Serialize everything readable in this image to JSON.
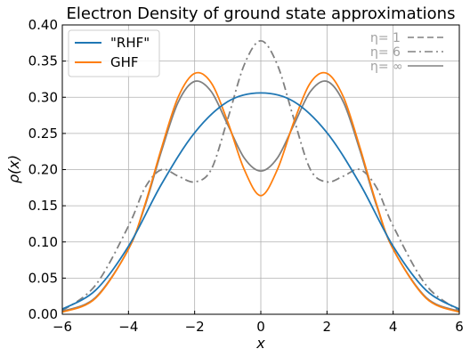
{
  "chart_data": {
    "type": "line",
    "title": "Electron Density of ground state approximations",
    "xlabel": "x",
    "ylabel": "ρ(x)",
    "xlim": [
      -6,
      6
    ],
    "ylim": [
      0,
      0.4
    ],
    "grid": true,
    "x_ticks": [
      -6,
      -4,
      -2,
      0,
      2,
      4,
      6
    ],
    "x_tick_labels": [
      "−6",
      "−4",
      "−2",
      "0",
      "2",
      "4",
      "6"
    ],
    "y_ticks": [
      0,
      0.05,
      0.1,
      0.15,
      0.2,
      0.25,
      0.3,
      0.35,
      0.4
    ],
    "y_tick_labels": [
      "0.00",
      "0.05",
      "0.10",
      "0.15",
      "0.20",
      "0.25",
      "0.30",
      "0.35",
      "0.40"
    ],
    "legend_placement": "top-left",
    "series": [
      {
        "name": "\"RHF\"",
        "color": "#1f77b4",
        "style": "solid",
        "x": [
          -6,
          -5,
          -4,
          -3,
          -2,
          -1,
          0,
          1,
          2,
          3,
          4,
          5,
          6
        ],
        "y": [
          0.007,
          0.033,
          0.094,
          0.18,
          0.251,
          0.294,
          0.306,
          0.294,
          0.251,
          0.18,
          0.094,
          0.033,
          0.007
        ]
      },
      {
        "name": "GHF",
        "color": "#ff7f0e",
        "style": "solid",
        "x": [
          -6,
          -5,
          -4,
          -3.5,
          -3,
          -2.5,
          -2,
          -1.5,
          -1,
          -0.5,
          0,
          0.5,
          1,
          1.5,
          2,
          2.5,
          3,
          3.5,
          4,
          5,
          6
        ],
        "y": [
          0.003,
          0.022,
          0.09,
          0.152,
          0.23,
          0.3,
          0.333,
          0.32,
          0.266,
          0.2,
          0.164,
          0.2,
          0.266,
          0.32,
          0.333,
          0.3,
          0.23,
          0.152,
          0.09,
          0.022,
          0.003
        ]
      },
      {
        "name": "η= 1",
        "color": "#808080",
        "style": "dashed",
        "x": [
          -6,
          6
        ],
        "y": [
          0.007,
          0.007
        ]
      },
      {
        "name": "η= 6",
        "color": "#808080",
        "style": "dashdot",
        "x": [
          -6,
          -5,
          -4,
          -3.5,
          -3,
          -2.5,
          -2,
          -1.5,
          -1,
          -0.5,
          0,
          0.5,
          1,
          1.5,
          2,
          2.5,
          3,
          3.5,
          4,
          5,
          6
        ],
        "y": [
          0.005,
          0.04,
          0.122,
          0.175,
          0.2,
          0.191,
          0.183,
          0.2,
          0.27,
          0.345,
          0.378,
          0.345,
          0.27,
          0.2,
          0.183,
          0.191,
          0.2,
          0.175,
          0.122,
          0.04,
          0.005
        ]
      },
      {
        "name": "η= ∞",
        "color": "#808080",
        "style": "solid",
        "x": [
          -6,
          -5,
          -4,
          -3.5,
          -3,
          -2.5,
          -2,
          -1.5,
          -1,
          -0.5,
          0,
          0.5,
          1,
          1.5,
          2,
          2.5,
          3,
          3.5,
          4,
          5,
          6
        ],
        "y": [
          0.004,
          0.023,
          0.09,
          0.15,
          0.226,
          0.293,
          0.322,
          0.308,
          0.262,
          0.216,
          0.198,
          0.216,
          0.262,
          0.308,
          0.322,
          0.293,
          0.226,
          0.15,
          0.09,
          0.023,
          0.004
        ]
      }
    ],
    "legend_main": [
      "\"RHF\"",
      "GHF"
    ],
    "legend_secondary": [
      "η= 1",
      "η= 6",
      "η= ∞"
    ]
  }
}
